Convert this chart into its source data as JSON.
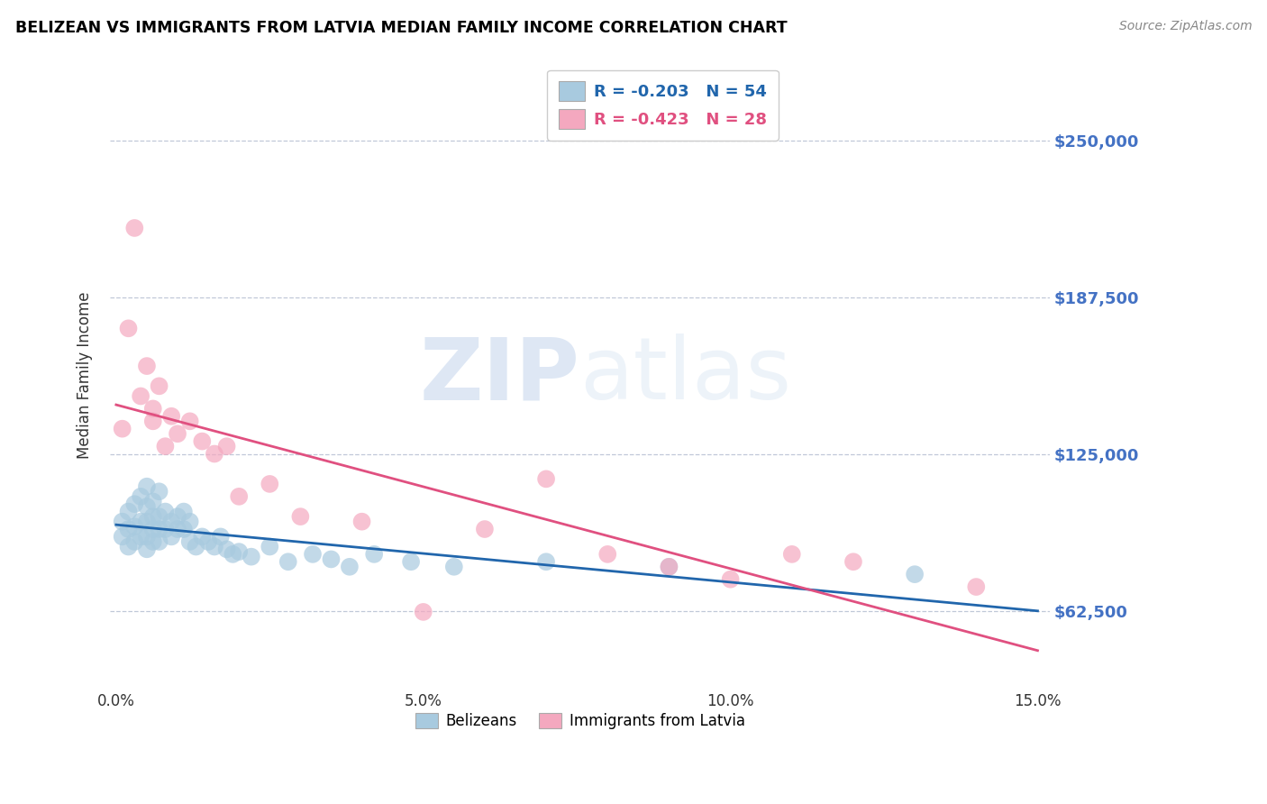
{
  "title": "BELIZEAN VS IMMIGRANTS FROM LATVIA MEDIAN FAMILY INCOME CORRELATION CHART",
  "source": "Source: ZipAtlas.com",
  "ylabel": "Median Family Income",
  "xlim": [
    -0.001,
    0.152
  ],
  "ylim": [
    31250,
    281250
  ],
  "yticks": [
    62500,
    125000,
    187500,
    250000
  ],
  "ytick_labels": [
    "$62,500",
    "$125,000",
    "$187,500",
    "$250,000"
  ],
  "xticks": [
    0.0,
    0.05,
    0.1,
    0.15
  ],
  "xtick_labels": [
    "0.0%",
    "5.0%",
    "10.0%",
    "15.0%"
  ],
  "blue_R": -0.203,
  "blue_N": 54,
  "pink_R": -0.423,
  "pink_N": 28,
  "blue_color": "#a8cadf",
  "pink_color": "#f4a8bf",
  "blue_line_color": "#2166ac",
  "pink_line_color": "#e05080",
  "legend_label_blue": "Belizeans",
  "legend_label_pink": "Immigrants from Latvia",
  "watermark_zip": "ZIP",
  "watermark_atlas": "atlas",
  "blue_x": [
    0.001,
    0.001,
    0.002,
    0.002,
    0.002,
    0.003,
    0.003,
    0.003,
    0.004,
    0.004,
    0.004,
    0.005,
    0.005,
    0.005,
    0.005,
    0.005,
    0.006,
    0.006,
    0.006,
    0.006,
    0.007,
    0.007,
    0.007,
    0.007,
    0.008,
    0.008,
    0.009,
    0.009,
    0.01,
    0.01,
    0.011,
    0.011,
    0.012,
    0.012,
    0.013,
    0.014,
    0.015,
    0.016,
    0.017,
    0.018,
    0.019,
    0.02,
    0.022,
    0.025,
    0.028,
    0.032,
    0.035,
    0.038,
    0.042,
    0.048,
    0.055,
    0.07,
    0.09,
    0.13
  ],
  "blue_y": [
    98000,
    92000,
    102000,
    95000,
    88000,
    105000,
    96000,
    90000,
    108000,
    98000,
    92000,
    112000,
    104000,
    98000,
    92000,
    87000,
    106000,
    100000,
    95000,
    90000,
    110000,
    100000,
    95000,
    90000,
    102000,
    95000,
    98000,
    92000,
    100000,
    95000,
    102000,
    95000,
    98000,
    90000,
    88000,
    92000,
    90000,
    88000,
    92000,
    87000,
    85000,
    86000,
    84000,
    88000,
    82000,
    85000,
    83000,
    80000,
    85000,
    82000,
    80000,
    82000,
    80000,
    77000
  ],
  "pink_x": [
    0.001,
    0.002,
    0.003,
    0.004,
    0.005,
    0.006,
    0.006,
    0.007,
    0.008,
    0.009,
    0.01,
    0.012,
    0.014,
    0.016,
    0.018,
    0.02,
    0.025,
    0.03,
    0.04,
    0.05,
    0.06,
    0.07,
    0.08,
    0.09,
    0.1,
    0.11,
    0.12,
    0.14
  ],
  "pink_y": [
    135000,
    175000,
    215000,
    148000,
    160000,
    138000,
    143000,
    152000,
    128000,
    140000,
    133000,
    138000,
    130000,
    125000,
    128000,
    108000,
    113000,
    100000,
    98000,
    62000,
    95000,
    115000,
    85000,
    80000,
    75000,
    85000,
    82000,
    72000
  ]
}
